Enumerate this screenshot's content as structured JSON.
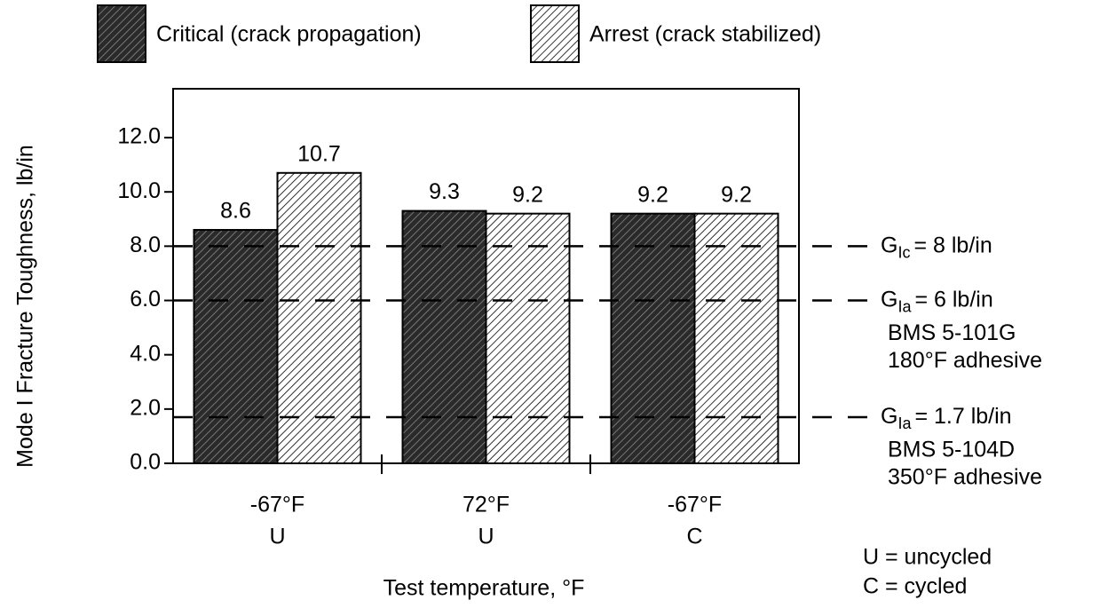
{
  "chart_data": {
    "type": "bar",
    "categories": [
      "-67°F",
      "72°F",
      "-67°F"
    ],
    "subcategories": [
      "U",
      "U",
      "C"
    ],
    "series": [
      {
        "name": "Critical (crack propagation)",
        "color": "#2a2a2a",
        "values": [
          8.6,
          9.3,
          9.2
        ]
      },
      {
        "name": "Arrest (crack stabilized)",
        "color": "#ffffff",
        "values": [
          10.7,
          9.2,
          9.2
        ]
      }
    ],
    "xlabel": "Test temperature, °F",
    "ylabel": "Mode I Fracture Toughness, lb/in",
    "ylim": [
      0,
      13.8
    ],
    "yticks": [
      {
        "value": 0,
        "label": "0.0"
      },
      {
        "value": 2,
        "label": "2.0"
      },
      {
        "value": 4,
        "label": "4.0"
      },
      {
        "value": 6,
        "label": "6.0"
      },
      {
        "value": 8,
        "label": "8.0"
      },
      {
        "value": 10,
        "label": "10.0"
      },
      {
        "value": 12,
        "label": "12.0"
      }
    ],
    "reference_lines": [
      {
        "value": 8,
        "symbol": "G",
        "subscript": "Ic",
        "label": "= 8 lb/in",
        "notes": []
      },
      {
        "value": 6,
        "symbol": "G",
        "subscript": "Ia",
        "label": "= 6 lb/in",
        "notes": [
          "BMS 5-101G",
          "180°F adhesive"
        ]
      },
      {
        "value": 1.7,
        "symbol": "G",
        "subscript": "Ia",
        "label": "= 1.7 lb/in",
        "notes": [
          "BMS 5-104D",
          "350°F adhesive"
        ]
      }
    ],
    "footnotes": [
      "U = uncycled",
      "C = cycled"
    ]
  }
}
